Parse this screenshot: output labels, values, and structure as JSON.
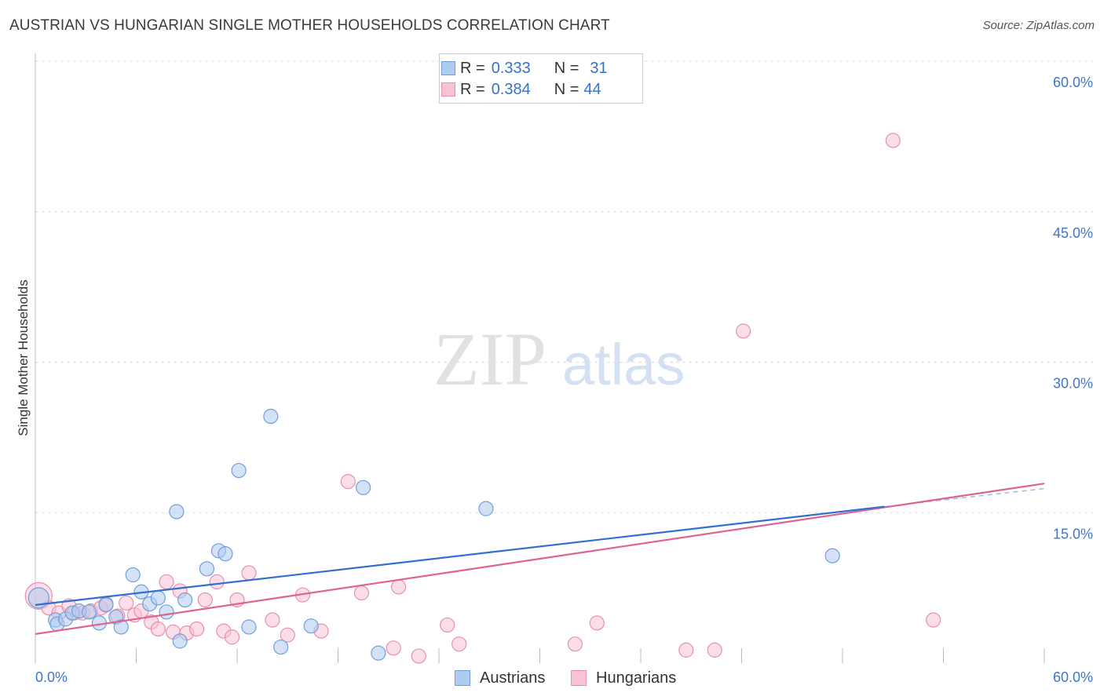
{
  "title": "AUSTRIAN VS HUNGARIAN SINGLE MOTHER HOUSEHOLDS CORRELATION CHART",
  "source": "Source: ZipAtlas.com",
  "watermark": {
    "zip": "ZIP",
    "atlas": "atlas"
  },
  "legend": {
    "austrians": {
      "r_label": "R =",
      "r_value": "0.333",
      "n_label": "N =",
      "n_value": "31"
    },
    "hungarians": {
      "r_label": "R =",
      "r_value": "0.384",
      "n_label": "N =",
      "n_value": "44"
    }
  },
  "bottom_legend": {
    "austrians": "Austrians",
    "hungarians": "Hungarians"
  },
  "colors": {
    "austrians_fill": "#aecbf0",
    "austrians_stroke": "#6f9fdc",
    "austrians_line": "#2f6fcf",
    "hungarians_fill": "#f7c3d3",
    "hungarians_stroke": "#e890ad",
    "hungarians_line": "#e0628e",
    "tick_label": "#3d76cc",
    "grid": "#dddddd"
  },
  "chart_data": {
    "type": "scatter",
    "title": "AUSTRIAN VS HUNGARIAN SINGLE MOTHER HOUSEHOLDS CORRELATION CHART",
    "xlabel": "",
    "ylabel": "Single Mother Households",
    "xlim": [
      0,
      60
    ],
    "ylim": [
      0,
      62
    ],
    "x_tick_labels": [
      "0.0%",
      "60.0%"
    ],
    "y_ticks": [
      15,
      30,
      45,
      60
    ],
    "y_tick_labels": [
      "15.0%",
      "30.0%",
      "45.0%",
      "60.0%"
    ],
    "grid": true,
    "series": [
      {
        "name": "Austrians",
        "r": 0.333,
        "n": 31,
        "trend": {
          "x0": 0,
          "y0": 5.8,
          "x1": 50.5,
          "y1": 15.6,
          "dashed_to_x": 60,
          "dashed_to_y": 17.4
        },
        "points": [
          [
            0.2,
            6.5
          ],
          [
            1.2,
            4.3
          ],
          [
            1.3,
            3.9
          ],
          [
            1.8,
            4.4
          ],
          [
            2.2,
            5.0
          ],
          [
            2.6,
            5.2
          ],
          [
            3.2,
            5.1
          ],
          [
            3.8,
            4.0
          ],
          [
            4.2,
            5.8
          ],
          [
            4.8,
            4.6
          ],
          [
            5.1,
            3.6
          ],
          [
            5.8,
            8.8
          ],
          [
            6.3,
            7.1
          ],
          [
            6.8,
            5.9
          ],
          [
            7.3,
            6.5
          ],
          [
            7.8,
            5.1
          ],
          [
            8.4,
            15.1
          ],
          [
            8.6,
            2.2
          ],
          [
            8.9,
            6.3
          ],
          [
            10.2,
            9.4
          ],
          [
            10.9,
            11.2
          ],
          [
            11.3,
            10.9
          ],
          [
            12.1,
            19.2
          ],
          [
            12.7,
            3.6
          ],
          [
            14.0,
            24.6
          ],
          [
            14.6,
            1.6
          ],
          [
            16.4,
            3.7
          ],
          [
            19.5,
            17.5
          ],
          [
            20.4,
            1.0
          ],
          [
            26.8,
            15.4
          ],
          [
            47.4,
            10.7
          ]
        ]
      },
      {
        "name": "Hungarians",
        "r": 0.384,
        "n": 44,
        "trend": {
          "x0": 0,
          "y0": 2.9,
          "x1": 60,
          "y1": 17.9
        },
        "points": [
          [
            0.2,
            6.7
          ],
          [
            0.8,
            5.5
          ],
          [
            1.4,
            5.0
          ],
          [
            2.0,
            5.7
          ],
          [
            2.3,
            5.0
          ],
          [
            2.8,
            5.0
          ],
          [
            3.3,
            5.2
          ],
          [
            3.9,
            5.5
          ],
          [
            4.2,
            5.9
          ],
          [
            4.9,
            4.7
          ],
          [
            5.4,
            6.0
          ],
          [
            5.9,
            4.8
          ],
          [
            6.3,
            5.2
          ],
          [
            6.9,
            4.1
          ],
          [
            7.3,
            3.4
          ],
          [
            7.8,
            8.1
          ],
          [
            8.2,
            3.1
          ],
          [
            8.6,
            7.2
          ],
          [
            9.0,
            3.0
          ],
          [
            9.6,
            3.4
          ],
          [
            10.1,
            6.3
          ],
          [
            10.8,
            8.1
          ],
          [
            11.2,
            3.2
          ],
          [
            11.7,
            2.6
          ],
          [
            12.0,
            6.3
          ],
          [
            12.7,
            9.0
          ],
          [
            14.1,
            4.3
          ],
          [
            15.0,
            2.8
          ],
          [
            15.9,
            6.8
          ],
          [
            17.0,
            3.2
          ],
          [
            18.6,
            18.1
          ],
          [
            19.4,
            7.0
          ],
          [
            21.3,
            1.5
          ],
          [
            21.6,
            7.6
          ],
          [
            22.8,
            0.7
          ],
          [
            24.5,
            3.8
          ],
          [
            25.2,
            1.9
          ],
          [
            32.1,
            1.9
          ],
          [
            33.4,
            4.0
          ],
          [
            38.7,
            1.3
          ],
          [
            40.4,
            1.3
          ],
          [
            42.1,
            33.1
          ],
          [
            51.0,
            52.1
          ],
          [
            53.4,
            4.3
          ]
        ]
      }
    ]
  }
}
